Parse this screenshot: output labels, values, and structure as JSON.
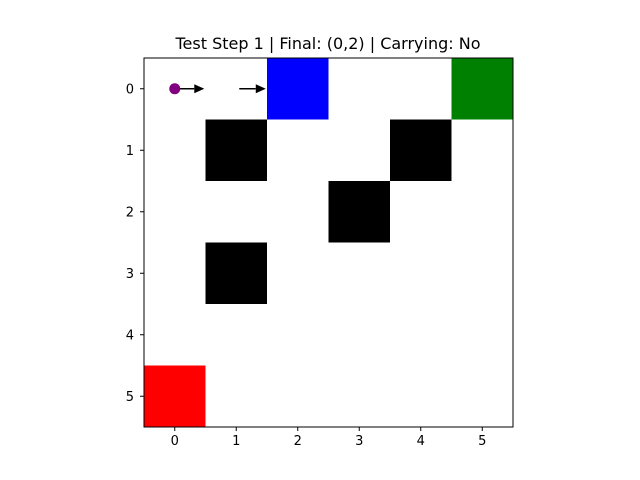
{
  "title": "Test Step 1 | Final: (0,2) | Carrying: No",
  "grid": {
    "cols": 6,
    "rows": 6,
    "x_ticks": [
      "0",
      "1",
      "2",
      "3",
      "4",
      "5"
    ],
    "y_ticks": [
      "0",
      "1",
      "2",
      "3",
      "4",
      "5"
    ]
  },
  "cells": [
    {
      "name": "obstacle",
      "row": 1,
      "col": 1,
      "color": "#000000"
    },
    {
      "name": "obstacle",
      "row": 1,
      "col": 4,
      "color": "#000000"
    },
    {
      "name": "obstacle",
      "row": 2,
      "col": 3,
      "color": "#000000"
    },
    {
      "name": "obstacle",
      "row": 3,
      "col": 1,
      "color": "#000000"
    },
    {
      "name": "blue-cell",
      "row": 0,
      "col": 2,
      "color": "#0000ff"
    },
    {
      "name": "green-cell",
      "row": 0,
      "col": 5,
      "color": "#008000"
    },
    {
      "name": "red-cell",
      "row": 5,
      "col": 0,
      "color": "#ff0000"
    }
  ],
  "agent": {
    "row": 0,
    "col": 0,
    "color": "#800080"
  },
  "path_arrows": [
    {
      "from": [
        0,
        0
      ],
      "to": [
        0,
        1
      ]
    },
    {
      "from": [
        0,
        1
      ],
      "to": [
        0,
        2
      ]
    }
  ]
}
